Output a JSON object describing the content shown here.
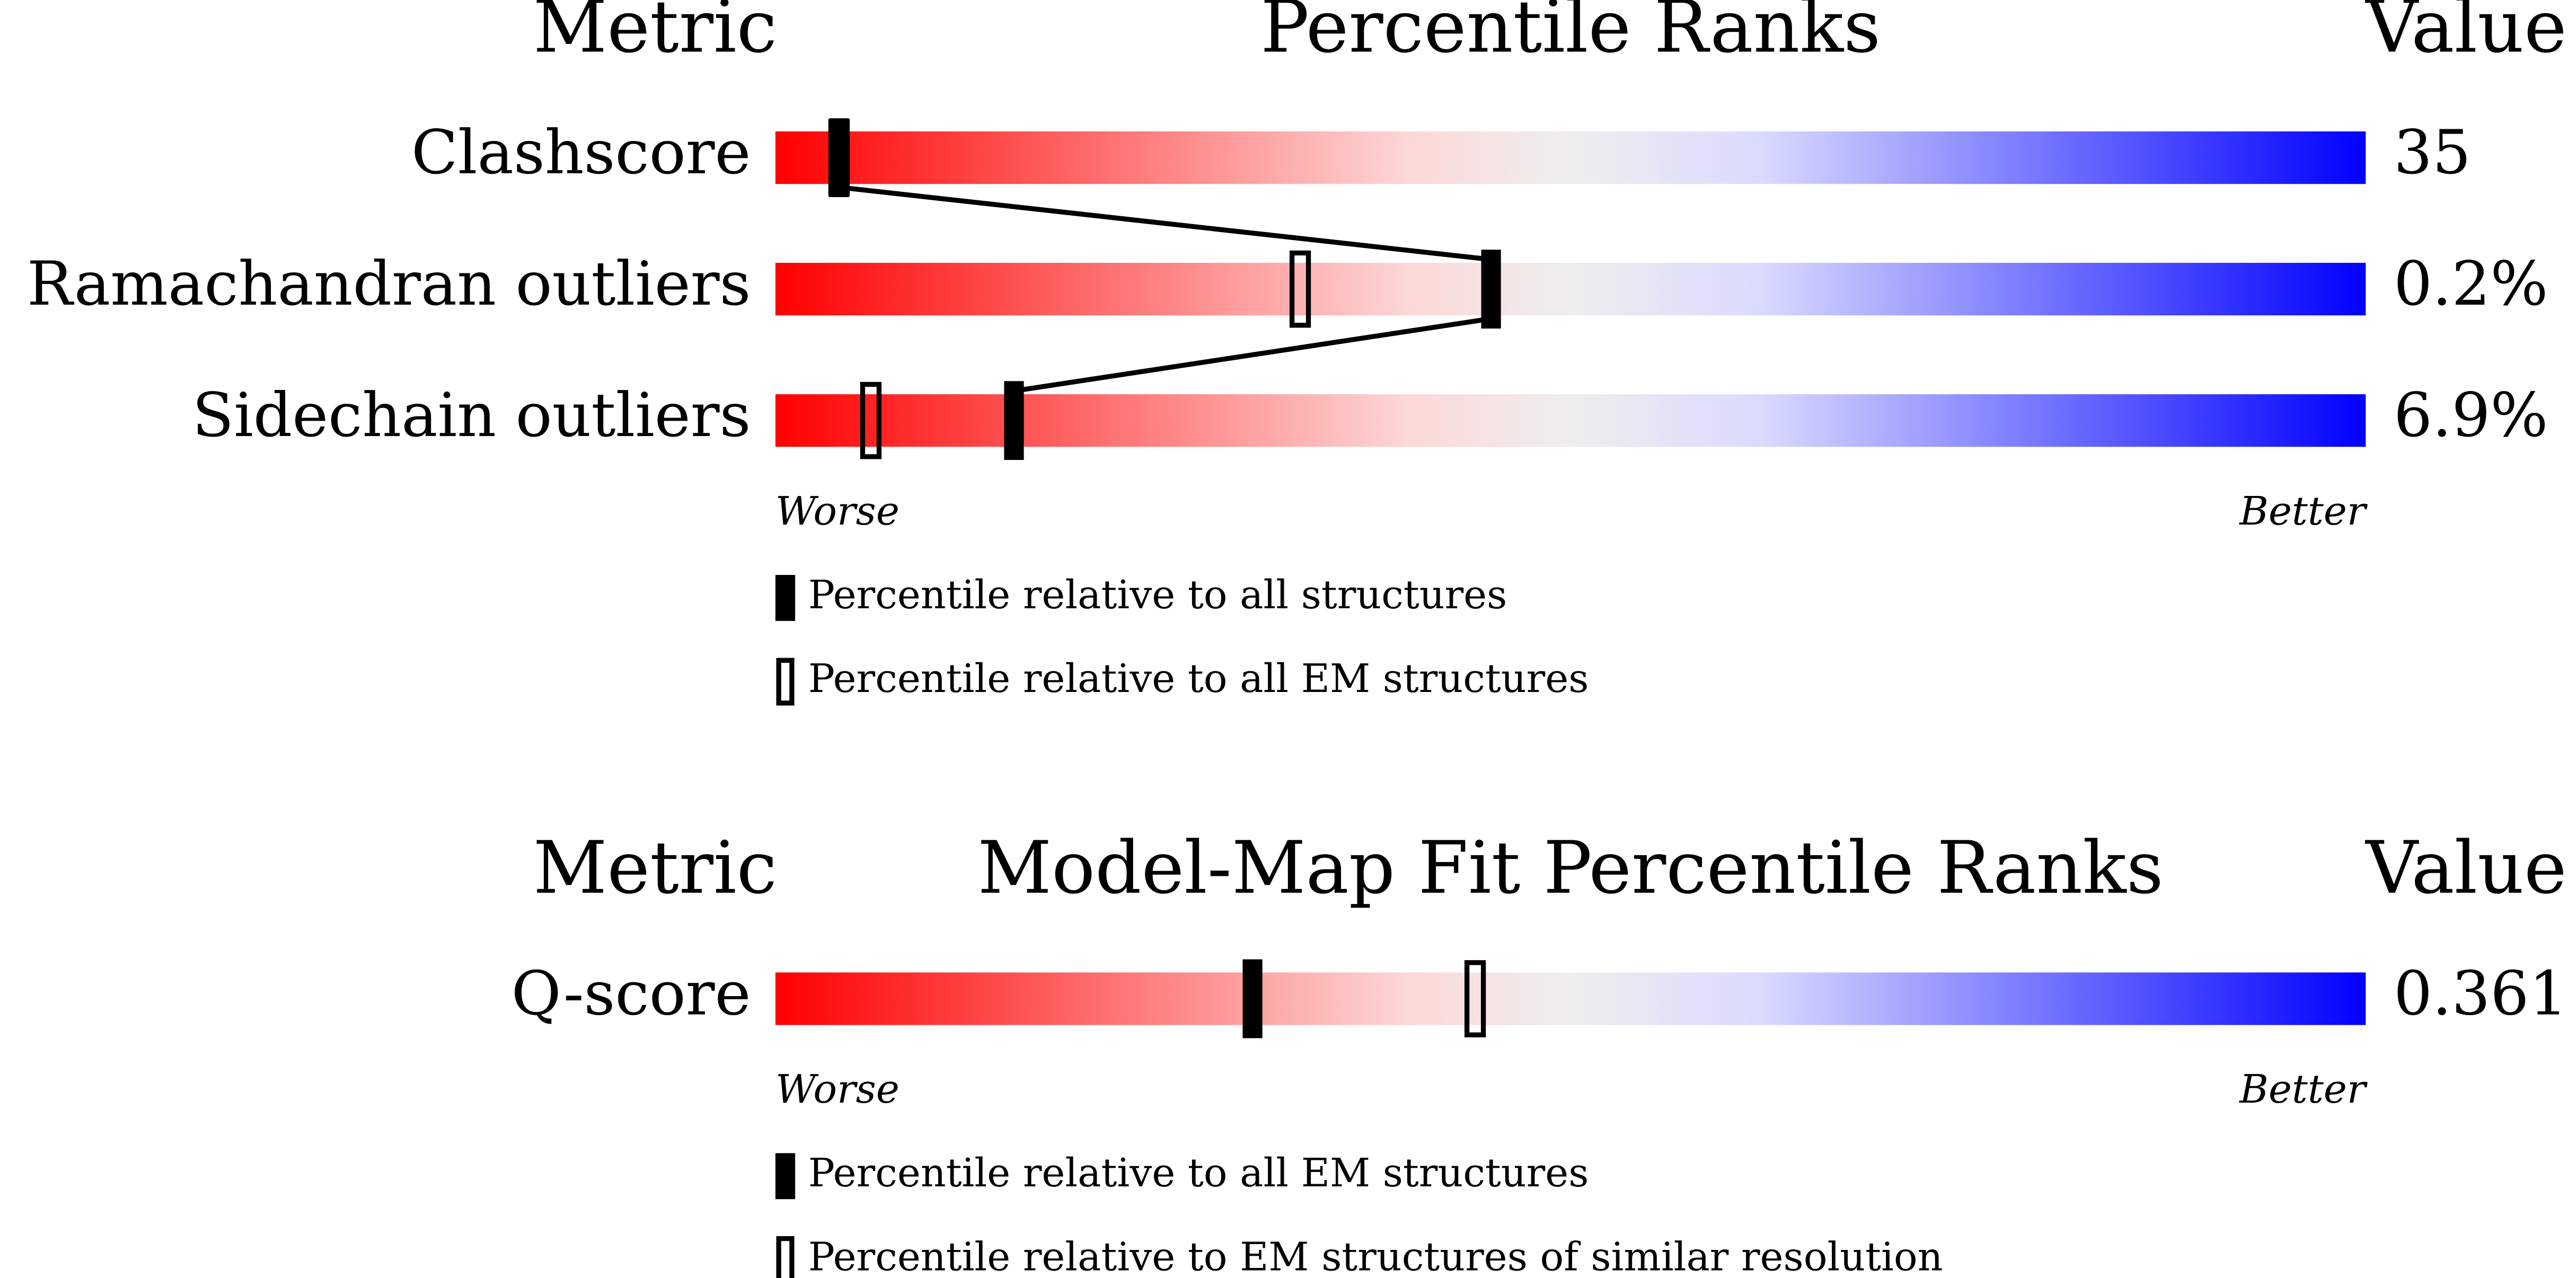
{
  "panels": [
    {
      "header": {
        "metric": "Metric",
        "title": "Percentile Ranks",
        "value": "Value"
      },
      "xlim": [
        0,
        100
      ],
      "rows": [
        {
          "metric": "Clashscore",
          "value": "35",
          "filled_percentile": 4,
          "open_percentile": 4
        },
        {
          "metric": "Ramachandran outliers",
          "value": "0.2%",
          "filled_percentile": 45,
          "open_percentile": 33
        },
        {
          "metric": "Sidechain outliers",
          "value": "6.9%",
          "filled_percentile": 15,
          "open_percentile": 6
        }
      ],
      "worse": "Worse",
      "better": "Better",
      "legend": {
        "filled": "Percentile relative to all structures",
        "open": "Percentile relative to all EM structures"
      },
      "connect_filled": true
    },
    {
      "header": {
        "metric": "Metric",
        "title": "Model-Map Fit Percentile Ranks",
        "value": "Value"
      },
      "xlim": [
        0,
        100
      ],
      "rows": [
        {
          "metric": "Q-score",
          "value": "0.361",
          "filled_percentile": 30,
          "open_percentile": 44
        }
      ],
      "worse": "Worse",
      "better": "Better",
      "legend": {
        "filled": "Percentile relative to all EM structures",
        "open": "Percentile relative to EM structures of similar resolution"
      },
      "connect_filled": false
    }
  ]
}
